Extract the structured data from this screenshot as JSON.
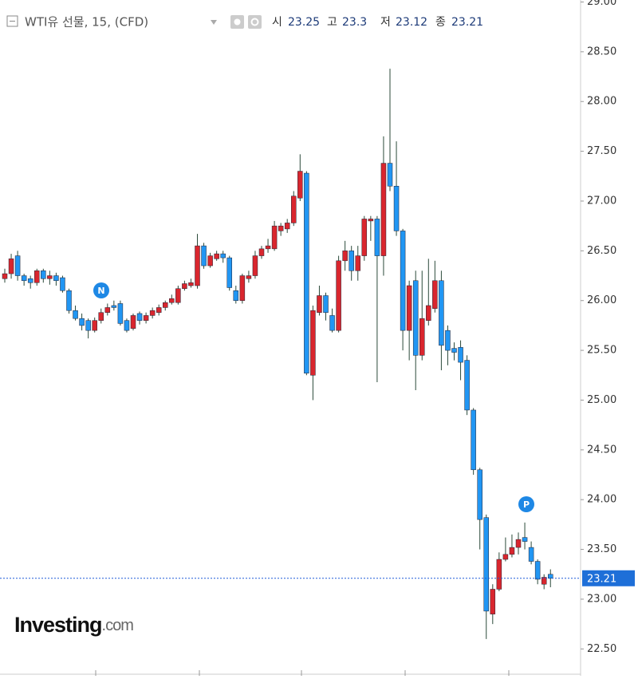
{
  "chart_data": {
    "type": "candlestick",
    "title": "WTI유 선물, 15, (CFD)",
    "ohlc_labels": [
      "시",
      "고",
      "저",
      "종"
    ],
    "annotations": [
      "N",
      "P"
    ],
    "logo": [
      "Investing",
      ".com"
    ],
    "up_color": "#d9262e",
    "down_color": "#2196f3",
    "wick_color": "#2b4a3a",
    "ylim": [
      22.23,
      29.02
    ],
    "yticks": [
      {
        "value": 22.5,
        "label": "22.50"
      },
      {
        "value": 23,
        "label": "23.00"
      },
      {
        "value": 23.5,
        "label": "23.50"
      },
      {
        "value": 24,
        "label": "24.00"
      },
      {
        "value": 24.5,
        "label": "24.50"
      },
      {
        "value": 25,
        "label": "25.00"
      },
      {
        "value": 25.5,
        "label": "25.50"
      },
      {
        "value": 26,
        "label": "26.00"
      },
      {
        "value": 26.5,
        "label": "26.50"
      },
      {
        "value": 27,
        "label": "27.00"
      },
      {
        "value": 27.5,
        "label": "27.50"
      },
      {
        "value": 28,
        "label": "28.00"
      },
      {
        "value": 28.5,
        "label": "28.50"
      },
      {
        "value": 29,
        "label": "29.00"
      }
    ],
    "open": [
      26.22,
      26.27,
      26.45,
      26.25,
      26.22,
      26.18,
      26.3,
      26.22,
      26.25,
      26.23,
      26.1,
      25.9,
      25.82,
      25.8,
      25.7,
      25.8,
      25.88,
      25.95,
      25.97,
      25.8,
      25.72,
      25.87,
      25.8,
      25.85,
      25.88,
      25.93,
      25.98,
      25.98,
      26.12,
      26.15,
      26.15,
      26.55,
      26.35,
      26.42,
      26.47,
      26.43,
      26.1,
      26.0,
      26.22,
      26.25,
      26.45,
      26.52,
      26.52,
      26.7,
      26.72,
      26.78,
      27.03,
      27.28,
      25.25,
      25.88,
      26.05,
      25.85,
      25.7,
      26.4,
      26.5,
      26.3,
      26.45,
      26.8,
      26.82,
      26.45,
      27.38,
      27.15,
      26.7,
      25.7,
      26.2,
      25.45,
      25.8,
      25.92,
      26.2,
      25.7,
      25.52,
      25.53,
      25.4,
      24.9,
      24.3,
      23.82,
      22.85,
      23.1,
      23.4,
      23.45,
      23.52,
      23.62,
      23.52,
      23.38,
      23.15,
      23.25
    ],
    "high": [
      26.32,
      26.47,
      26.5,
      26.27,
      26.25,
      26.32,
      26.32,
      26.3,
      26.28,
      26.25,
      26.12,
      25.95,
      25.87,
      25.82,
      25.83,
      25.92,
      25.97,
      26.0,
      26.0,
      25.82,
      25.87,
      25.89,
      25.88,
      25.93,
      25.96,
      26.0,
      26.06,
      26.15,
      26.2,
      26.22,
      26.67,
      26.58,
      26.48,
      26.5,
      26.5,
      26.45,
      26.15,
      26.27,
      26.3,
      26.5,
      26.55,
      26.62,
      26.8,
      26.78,
      26.82,
      27.1,
      27.47,
      27.3,
      25.95,
      26.15,
      26.08,
      25.92,
      26.45,
      26.6,
      26.55,
      26.55,
      26.85,
      26.85,
      26.85,
      27.65,
      28.33,
      27.6,
      26.72,
      26.2,
      26.3,
      26.3,
      26.42,
      26.4,
      26.3,
      25.75,
      25.58,
      25.6,
      25.45,
      24.92,
      24.32,
      23.85,
      23.15,
      23.47,
      23.62,
      23.65,
      23.67,
      23.77,
      23.58,
      23.4,
      23.25,
      23.3
    ],
    "low": [
      26.18,
      26.22,
      26.2,
      26.15,
      26.12,
      26.15,
      26.18,
      26.16,
      26.15,
      26.08,
      25.87,
      25.8,
      25.7,
      25.62,
      25.68,
      25.77,
      25.85,
      25.9,
      25.75,
      25.68,
      25.7,
      25.76,
      25.77,
      25.82,
      25.85,
      25.9,
      25.96,
      25.96,
      26.1,
      26.13,
      26.12,
      26.32,
      26.33,
      26.4,
      26.38,
      26.1,
      25.97,
      25.97,
      26.18,
      26.22,
      26.42,
      26.48,
      26.5,
      26.65,
      26.68,
      26.75,
      27.0,
      25.25,
      25.0,
      25.85,
      25.8,
      25.68,
      25.68,
      26.3,
      26.2,
      26.2,
      26.4,
      26.6,
      25.18,
      26.25,
      27.1,
      26.65,
      25.5,
      25.4,
      25.1,
      25.4,
      25.75,
      25.88,
      25.3,
      25.35,
      25.4,
      25.2,
      24.85,
      24.25,
      23.5,
      22.6,
      22.75,
      23.08,
      23.38,
      23.42,
      23.45,
      23.5,
      23.35,
      23.15,
      23.1,
      23.12
    ],
    "close": [
      26.27,
      26.42,
      26.25,
      26.2,
      26.18,
      26.3,
      26.22,
      26.25,
      26.2,
      26.1,
      25.9,
      25.82,
      25.75,
      25.7,
      25.8,
      25.88,
      25.93,
      25.93,
      25.77,
      25.7,
      25.85,
      25.8,
      25.85,
      25.9,
      25.93,
      25.98,
      26.02,
      26.12,
      26.17,
      26.18,
      26.55,
      26.35,
      26.45,
      26.47,
      26.43,
      26.13,
      26.0,
      26.25,
      26.25,
      26.45,
      26.52,
      26.55,
      26.75,
      26.75,
      26.78,
      27.05,
      27.3,
      25.27,
      25.9,
      26.05,
      25.88,
      25.7,
      26.4,
      26.5,
      26.3,
      26.45,
      26.82,
      26.82,
      26.45,
      27.38,
      27.15,
      26.7,
      25.7,
      26.15,
      25.45,
      25.82,
      25.95,
      26.2,
      25.55,
      25.5,
      25.48,
      25.38,
      24.9,
      24.3,
      23.8,
      22.88,
      23.1,
      23.4,
      23.45,
      23.52,
      23.6,
      23.58,
      23.38,
      23.2,
      23.22,
      23.21
    ]
  }
}
